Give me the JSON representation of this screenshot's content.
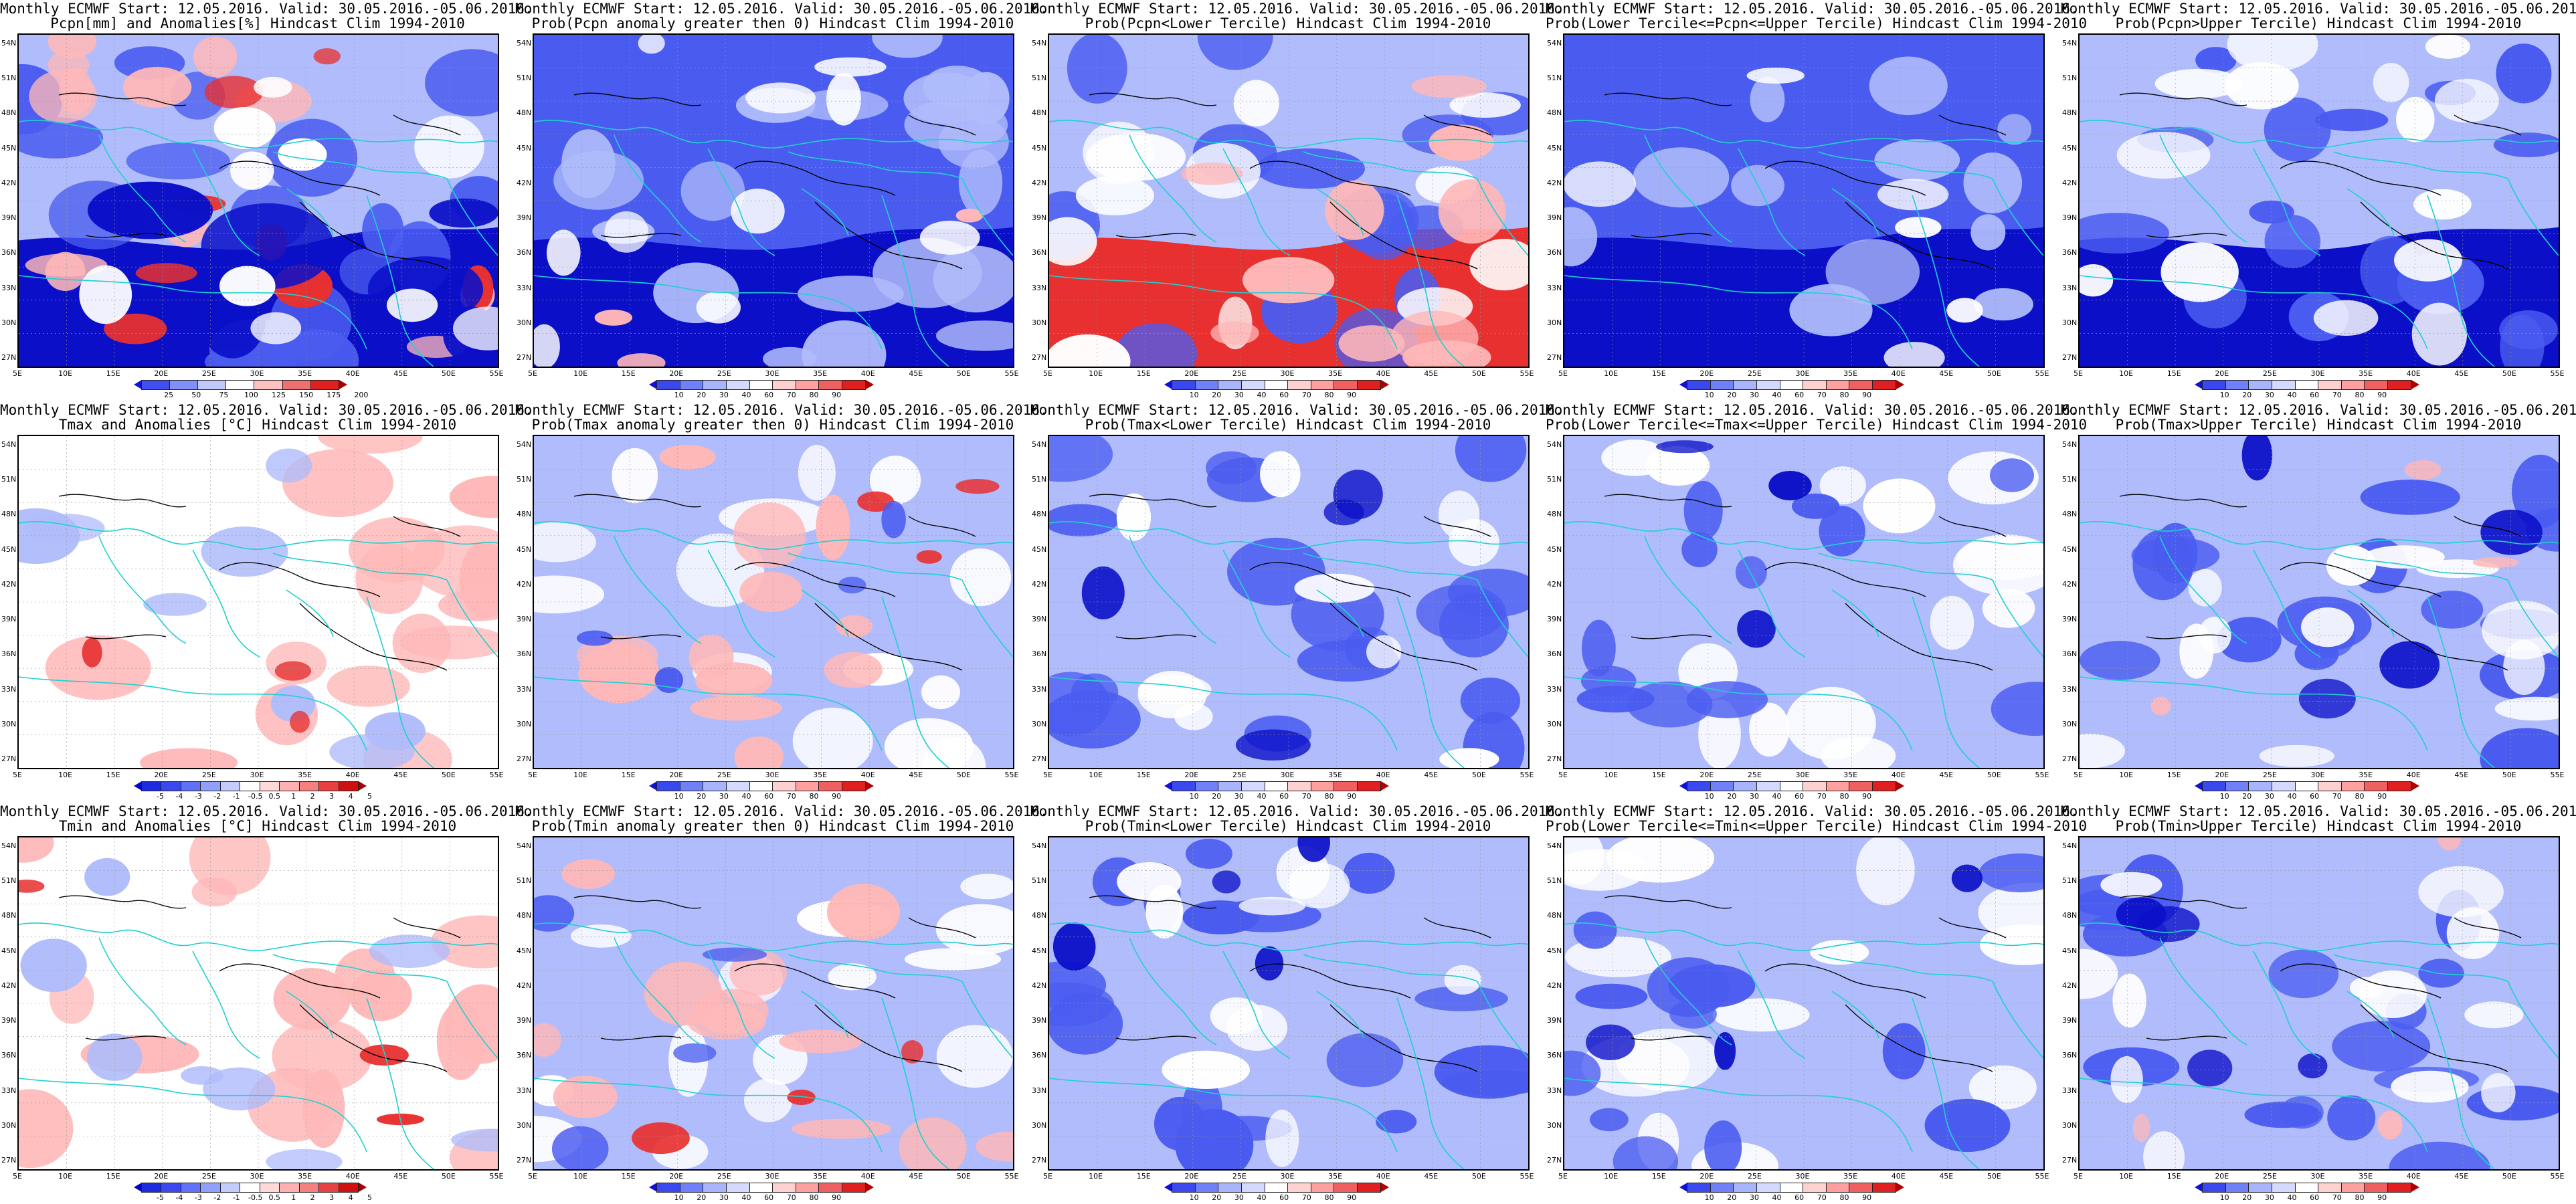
{
  "panels": [
    {
      "id": "r1c1",
      "line1": "Monthly ECMWF Start: 12.05.2016. Valid: 30.05.2016.-05.06.2016.",
      "line2": "Pcpn[mm] and Anomalies[%] Hindcast Clim 1994-2010",
      "scale": "anom_pcpn",
      "map": "pcpn_anom"
    },
    {
      "id": "r1c2",
      "line1": "Monthly ECMWF Start: 12.05.2016. Valid: 30.05.2016.-05.06.2016.",
      "line2": "Prob(Pcpn anomaly greater then 0) Hindcast Clim 1994-2010",
      "scale": "prob",
      "map": "pcpn_pos"
    },
    {
      "id": "r1c3",
      "line1": "Monthly ECMWF Start: 12.05.2016. Valid: 30.05.2016.-05.06.2016.",
      "line2": "Prob(Pcpn<Lower Tercile) Hindcast Clim 1994-2010",
      "scale": "prob",
      "map": "pcpn_low"
    },
    {
      "id": "r1c4",
      "line1": "Monthly ECMWF Start: 12.05.2016. Valid: 30.05.2016.-05.06.2016.",
      "line2": "Prob(Lower Tercile<=Pcpn<=Upper Tercile) Hindcast Clim 1994-2010",
      "scale": "prob",
      "map": "pcpn_mid"
    },
    {
      "id": "r1c5",
      "line1": "Monthly ECMWF Start: 12.05.2016. Valid: 30.05.2016.-05.06.2016.",
      "line2": "Prob(Pcpn>Upper Tercile) Hindcast Clim 1994-2010",
      "scale": "prob",
      "map": "pcpn_up"
    },
    {
      "id": "r2c1",
      "line1": "Monthly ECMWF Start: 12.05.2016. Valid: 30.05.2016.-05.06.2016.",
      "line2": "Tmax and Anomalies [°C] Hindcast Clim 1994-2010",
      "scale": "anom_temp",
      "map": "t_anom"
    },
    {
      "id": "r2c2",
      "line1": "Monthly ECMWF Start: 12.05.2016. Valid: 30.05.2016.-05.06.2016.",
      "line2": "Prob(Tmax anomaly greater then 0) Hindcast Clim 1994-2010",
      "scale": "prob",
      "map": "t_pos"
    },
    {
      "id": "r2c3",
      "line1": "Monthly ECMWF Start: 12.05.2016. Valid: 30.05.2016.-05.06.2016.",
      "line2": "Prob(Tmax<Lower Tercile) Hindcast Clim 1994-2010",
      "scale": "prob",
      "map": "t_low"
    },
    {
      "id": "r2c4",
      "line1": "Monthly ECMWF Start: 12.05.2016. Valid: 30.05.2016.-05.06.2016.",
      "line2": "Prob(Lower Tercile<=Tmax<=Upper Tercile) Hindcast Clim 1994-2010",
      "scale": "prob",
      "map": "t_mid"
    },
    {
      "id": "r2c5",
      "line1": "Monthly ECMWF Start: 12.05.2016. Valid: 30.05.2016.-05.06.2016.",
      "line2": "Prob(Tmax>Upper Tercile) Hindcast Clim 1994-2010",
      "scale": "prob",
      "map": "t_up"
    },
    {
      "id": "r3c1",
      "line1": "Monthly ECMWF Start: 12.05.2016. Valid: 30.05.2016.-05.06.2016.",
      "line2": "Tmin and Anomalies [°C] Hindcast Clim 1994-2010",
      "scale": "anom_temp",
      "map": "t_anom"
    },
    {
      "id": "r3c2",
      "line1": "Monthly ECMWF Start: 12.05.2016. Valid: 30.05.2016.-05.06.2016.",
      "line2": "Prob(Tmin anomaly greater then 0) Hindcast Clim 1994-2010",
      "scale": "prob",
      "map": "t_pos"
    },
    {
      "id": "r3c3",
      "line1": "Monthly ECMWF Start: 12.05.2016. Valid: 30.05.2016.-05.06.2016.",
      "line2": "Prob(Tmin<Lower Tercile) Hindcast Clim 1994-2010",
      "scale": "prob",
      "map": "t_low"
    },
    {
      "id": "r3c4",
      "line1": "Monthly ECMWF Start: 12.05.2016. Valid: 30.05.2016.-05.06.2016.",
      "line2": "Prob(Lower Tercile<=Tmin<=Upper Tercile) Hindcast Clim 1994-2010",
      "scale": "prob",
      "map": "t_mid"
    },
    {
      "id": "r3c5",
      "line1": "Monthly ECMWF Start: 12.05.2016. Valid: 30.05.2016.-05.06.2016.",
      "line2": "Prob(Tmin>Upper Tercile) Hindcast Clim 1994-2010",
      "scale": "prob",
      "map": "t_up"
    }
  ],
  "lat_labels": [
    "54N",
    "51N",
    "48N",
    "45N",
    "42N",
    "39N",
    "36N",
    "33N",
    "30N",
    "27N"
  ],
  "lon_labels": [
    "5E",
    "10E",
    "15E",
    "20E",
    "25E",
    "30E",
    "35E",
    "40E",
    "45E",
    "50E",
    "55E"
  ],
  "colorbars": {
    "prob": {
      "labels": [
        "10",
        "20",
        "30",
        "40",
        "60",
        "70",
        "80",
        "90"
      ],
      "colors": [
        "#1010d8",
        "#3a48f0",
        "#7080f8",
        "#a8b4fb",
        "#d4daff",
        "#ffffff",
        "#ffd0d0",
        "#ffa0a0",
        "#f06060",
        "#e02020",
        "#b00000"
      ]
    },
    "anom_temp": {
      "labels": [
        "-5",
        "-4",
        "-3",
        "-2",
        "-1",
        "-0.5",
        "0.5",
        "1",
        "2",
        "3",
        "4",
        "5"
      ],
      "colors": [
        "#0000c0",
        "#1c2ae0",
        "#3a48f0",
        "#6070f8",
        "#90a0fb",
        "#c4ccfd",
        "#ffffff",
        "#ffd8d8",
        "#ffb0b0",
        "#f48080",
        "#e84040",
        "#d01010",
        "#a00000"
      ]
    },
    "anom_pcpn": {
      "labels": [
        "25",
        "50",
        "75",
        "100",
        "125",
        "150",
        "175",
        "200"
      ],
      "colors": [
        "#1010d8",
        "#4050f0",
        "#8090f8",
        "#c0c8fc",
        "#ffffff",
        "#ffc0c0",
        "#f07070",
        "#e02020",
        "#a00000"
      ]
    }
  },
  "map_colors": {
    "deep_blue": "#0b10c8",
    "mid_blue": "#4a5cf0",
    "light_blue": "#b0bcfb",
    "white": "#ffffff",
    "light_red": "#ffb8b8",
    "red": "#e83030",
    "dark_red": "#a00000",
    "coast": "#20d0d0",
    "contour": "#000000"
  }
}
